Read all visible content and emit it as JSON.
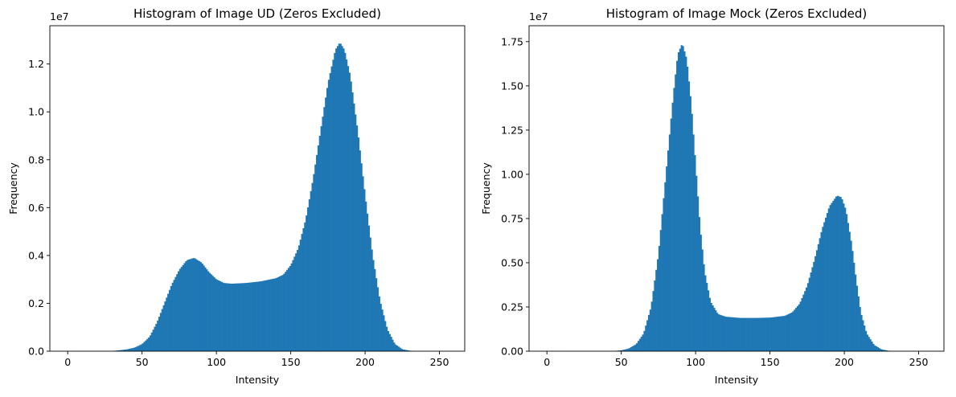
{
  "chart_data": [
    {
      "type": "bar",
      "title": "Histogram of Image UD (Zeros Excluded)",
      "xlabel": "Intensity",
      "ylabel": "Frequency",
      "offset_text": "1e7",
      "xlim": [
        -12,
        267
      ],
      "ylim": [
        0,
        1.36
      ],
      "xticks": [
        0,
        50,
        100,
        150,
        200,
        250
      ],
      "xtick_labels": [
        "0",
        "50",
        "100",
        "150",
        "200",
        "250"
      ],
      "yticks": [
        0.0,
        0.2,
        0.4,
        0.6,
        0.8,
        1.0,
        1.2
      ],
      "ytick_labels": [
        "0.0",
        "0.2",
        "0.4",
        "0.6",
        "0.8",
        "1.0",
        "1.2"
      ],
      "color": "#1f77b4",
      "bins": {
        "start": 0,
        "end": 255,
        "count": 255
      },
      "curve": [
        [
          0,
          0
        ],
        [
          30,
          0.001
        ],
        [
          35,
          0.004
        ],
        [
          40,
          0.008
        ],
        [
          45,
          0.015
        ],
        [
          50,
          0.03
        ],
        [
          55,
          0.06
        ],
        [
          60,
          0.12
        ],
        [
          65,
          0.2
        ],
        [
          70,
          0.28
        ],
        [
          75,
          0.34
        ],
        [
          80,
          0.38
        ],
        [
          85,
          0.39
        ],
        [
          90,
          0.37
        ],
        [
          95,
          0.33
        ],
        [
          100,
          0.3
        ],
        [
          105,
          0.285
        ],
        [
          110,
          0.282
        ],
        [
          120,
          0.285
        ],
        [
          130,
          0.292
        ],
        [
          140,
          0.305
        ],
        [
          145,
          0.32
        ],
        [
          150,
          0.36
        ],
        [
          155,
          0.43
        ],
        [
          160,
          0.55
        ],
        [
          165,
          0.72
        ],
        [
          170,
          0.92
        ],
        [
          175,
          1.12
        ],
        [
          180,
          1.26
        ],
        [
          183,
          1.29
        ],
        [
          186,
          1.26
        ],
        [
          190,
          1.15
        ],
        [
          195,
          0.92
        ],
        [
          200,
          0.65
        ],
        [
          205,
          0.4
        ],
        [
          210,
          0.21
        ],
        [
          215,
          0.09
        ],
        [
          220,
          0.03
        ],
        [
          225,
          0.008
        ],
        [
          230,
          0.002
        ],
        [
          235,
          0
        ],
        [
          255,
          0
        ]
      ]
    },
    {
      "type": "bar",
      "title": "Histogram of Image Mock (Zeros Excluded)",
      "xlabel": "Intensity",
      "ylabel": "Frequency",
      "offset_text": "1e7",
      "xlim": [
        -12,
        267
      ],
      "ylim": [
        0,
        1.84
      ],
      "xticks": [
        0,
        50,
        100,
        150,
        200,
        250
      ],
      "xtick_labels": [
        "0",
        "50",
        "100",
        "150",
        "200",
        "250"
      ],
      "yticks": [
        0.0,
        0.25,
        0.5,
        0.75,
        1.0,
        1.25,
        1.5,
        1.75
      ],
      "ytick_labels": [
        "0.00",
        "0.25",
        "0.50",
        "0.75",
        "1.00",
        "1.25",
        "1.50",
        "1.75"
      ],
      "color": "#1f77b4",
      "bins": {
        "start": 0,
        "end": 255,
        "count": 255
      },
      "curve": [
        [
          0,
          0
        ],
        [
          45,
          0.001
        ],
        [
          50,
          0.005
        ],
        [
          55,
          0.015
        ],
        [
          60,
          0.04
        ],
        [
          65,
          0.1
        ],
        [
          70,
          0.25
        ],
        [
          75,
          0.55
        ],
        [
          80,
          1.0
        ],
        [
          85,
          1.45
        ],
        [
          88,
          1.68
        ],
        [
          91,
          1.74
        ],
        [
          94,
          1.65
        ],
        [
          97,
          1.4
        ],
        [
          100,
          1.05
        ],
        [
          103,
          0.7
        ],
        [
          106,
          0.45
        ],
        [
          110,
          0.28
        ],
        [
          115,
          0.21
        ],
        [
          120,
          0.195
        ],
        [
          130,
          0.188
        ],
        [
          140,
          0.188
        ],
        [
          150,
          0.19
        ],
        [
          160,
          0.2
        ],
        [
          165,
          0.22
        ],
        [
          170,
          0.27
        ],
        [
          175,
          0.37
        ],
        [
          180,
          0.52
        ],
        [
          185,
          0.69
        ],
        [
          190,
          0.82
        ],
        [
          195,
          0.88
        ],
        [
          198,
          0.87
        ],
        [
          201,
          0.8
        ],
        [
          205,
          0.6
        ],
        [
          208,
          0.4
        ],
        [
          211,
          0.22
        ],
        [
          215,
          0.1
        ],
        [
          220,
          0.035
        ],
        [
          225,
          0.01
        ],
        [
          230,
          0.002
        ],
        [
          235,
          0
        ],
        [
          255,
          0
        ]
      ]
    }
  ]
}
